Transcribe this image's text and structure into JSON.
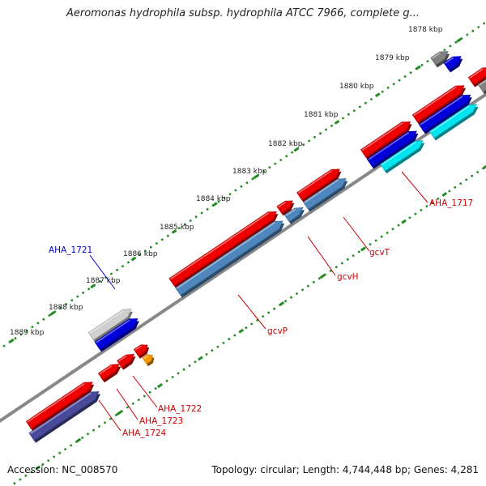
{
  "header": {
    "title": "Aeromonas hydrophila subsp. hydrophila ATCC 7966, complete g..."
  },
  "footer": {
    "accession": "Accession: NC_008570",
    "summary": "Topology: circular; Length: 4,744,448 bp; Genes: 4,281"
  },
  "colors": {
    "backbone": "#888888",
    "tick_dots": "#228b22",
    "gene_forward": "#ee0000",
    "gene_reverse_light": "#cfcfcf",
    "gene_reverse_blue": "#0000dd",
    "gene_steel": "#4f86bd",
    "gene_cyan": "#00e5f0",
    "gene_grey": "#808080",
    "gene_orange": "#ff9900",
    "gene_indigo": "#4a4a9c",
    "label_red": "#cc0000",
    "label_blue": "#0000cc"
  },
  "ticks": [
    {
      "label": "1878 kbp"
    },
    {
      "label": "1879 kbp"
    },
    {
      "label": "1880 kbp"
    },
    {
      "label": "1881 kbp"
    },
    {
      "label": "1882 kbp"
    },
    {
      "label": "1883 kbp"
    },
    {
      "label": "1884 kbp"
    },
    {
      "label": "1885 kbp"
    },
    {
      "label": "1886 kbp"
    },
    {
      "label": "1887 kbp"
    },
    {
      "label": "1888 kbp"
    },
    {
      "label": "1889 kbp"
    }
  ],
  "gene_labels": [
    {
      "name": "AHA_1717",
      "color": "label_red"
    },
    {
      "name": "gcvT",
      "color": "label_red"
    },
    {
      "name": "gcvH",
      "color": "label_red"
    },
    {
      "name": "gcvP",
      "color": "label_red"
    },
    {
      "name": "AHA_1721",
      "color": "label_blue"
    },
    {
      "name": "AHA_1722",
      "color": "label_red"
    },
    {
      "name": "AHA_1723",
      "color": "label_red"
    },
    {
      "name": "AHA_1724",
      "color": "label_red"
    }
  ]
}
